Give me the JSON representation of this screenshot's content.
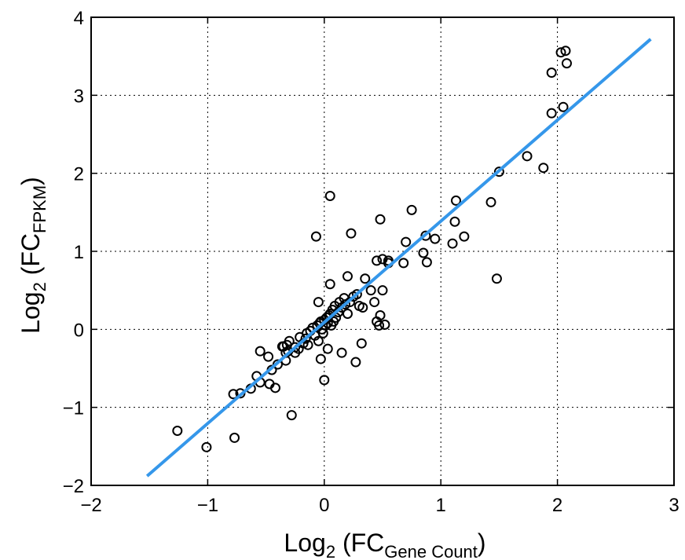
{
  "chart_data": {
    "type": "scatter",
    "xlabel": {
      "main": "Log",
      "base": "2",
      "open": " (FC",
      "sub": "Gene Count",
      "close": ")"
    },
    "ylabel": {
      "main": "Log",
      "base": "2",
      "open": " (FC",
      "sub": "FPKM",
      "close": ")"
    },
    "xlim": [
      -2,
      3
    ],
    "ylim": [
      -2,
      4
    ],
    "xticks": [
      -2,
      -1,
      0,
      1,
      2,
      3
    ],
    "yticks": [
      -2,
      -1,
      0,
      1,
      2,
      3,
      4
    ],
    "xtick_labels": [
      "−2",
      "−1",
      "0",
      "1",
      "2",
      "3"
    ],
    "ytick_labels": [
      "−2",
      "−1",
      "0",
      "1",
      "2",
      "3",
      "4"
    ],
    "grid": true,
    "colors": {
      "fit_line": "#3597ea",
      "points": "#000000"
    },
    "fit_line": {
      "x": [
        -1.52,
        2.8
      ],
      "y": [
        -1.88,
        3.72
      ]
    },
    "points": {
      "x": [
        -1.26,
        -1.01,
        -0.77,
        -0.78,
        -0.72,
        -0.28,
        -0.63,
        -0.58,
        -0.55,
        -0.47,
        -0.45,
        -0.4,
        -0.36,
        -0.33,
        -0.32,
        -0.31,
        -0.3,
        -0.25,
        -0.22,
        -0.21,
        -0.18,
        -0.16,
        -0.15,
        -0.14,
        -0.12,
        -0.1,
        -0.08,
        -0.06,
        -0.05,
        -0.04,
        -0.03,
        -0.02,
        -0.01,
        0.0,
        0.01,
        0.02,
        0.03,
        0.04,
        0.05,
        0.06,
        0.07,
        0.08,
        0.09,
        0.1,
        0.12,
        0.13,
        0.15,
        0.17,
        0.18,
        0.2,
        0.22,
        0.25,
        0.28,
        0.3,
        0.33,
        0.35,
        0.4,
        0.43,
        0.45,
        0.47,
        0.5,
        0.52,
        -0.05,
        -0.03,
        0.0,
        0.03,
        0.05,
        0.2,
        0.27,
        0.32,
        0.15,
        0.48,
        -0.55,
        -0.48,
        -0.42,
        -0.35,
        -0.33,
        -0.25,
        0.45,
        0.5,
        0.55,
        0.68,
        0.7,
        0.55,
        0.75,
        0.85,
        0.87,
        0.88,
        0.95,
        1.1,
        1.12,
        1.13,
        1.2,
        1.43,
        1.48,
        1.5,
        1.74,
        1.88,
        1.95,
        1.95,
        2.03,
        2.05,
        2.07,
        2.08,
        0.05,
        0.23,
        0.48,
        -0.07
      ],
      "y": [
        -1.3,
        -1.51,
        -1.39,
        -0.83,
        -0.82,
        -1.1,
        -0.76,
        -0.6,
        -0.68,
        -0.7,
        -0.52,
        -0.45,
        -0.22,
        -0.3,
        -0.2,
        -0.28,
        -0.15,
        -0.23,
        -0.25,
        -0.1,
        -0.18,
        -0.12,
        -0.05,
        -0.2,
        -0.02,
        0.02,
        -0.08,
        0.05,
        -0.15,
        0.08,
        0.1,
        0.0,
        -0.05,
        0.12,
        0.05,
        0.15,
        0.08,
        0.18,
        0.2,
        0.05,
        0.25,
        0.1,
        0.3,
        0.15,
        0.22,
        0.35,
        0.28,
        0.4,
        0.32,
        0.2,
        0.35,
        0.42,
        0.45,
        0.3,
        0.28,
        0.65,
        0.5,
        0.35,
        0.1,
        0.05,
        0.5,
        0.06,
        0.35,
        -0.38,
        -0.65,
        -0.25,
        0.58,
        0.68,
        -0.42,
        -0.18,
        -0.3,
        0.18,
        -0.28,
        -0.35,
        -0.75,
        -0.22,
        -0.4,
        -0.3,
        0.88,
        0.9,
        0.85,
        0.85,
        1.12,
        0.88,
        1.53,
        0.98,
        1.2,
        0.86,
        1.16,
        1.1,
        1.38,
        1.65,
        1.19,
        1.63,
        0.65,
        2.02,
        2.22,
        2.07,
        2.77,
        3.29,
        3.55,
        2.85,
        3.57,
        3.41,
        1.71,
        1.23,
        1.41,
        1.19
      ]
    }
  }
}
